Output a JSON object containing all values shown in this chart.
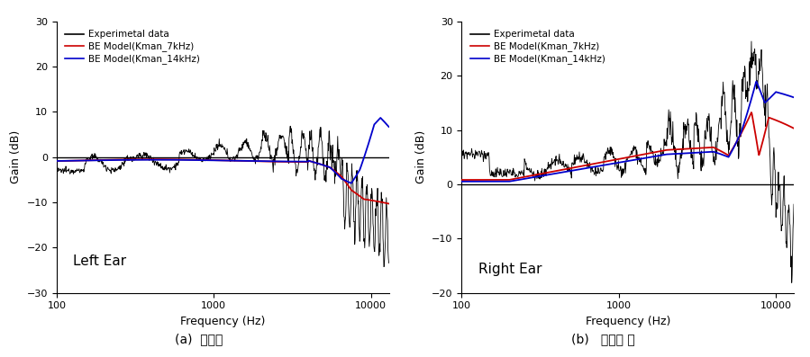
{
  "title_left": "Left Ear",
  "title_right": "Right Ear",
  "xlabel": "Frequency (Hz)",
  "ylabel": "Gain (dB)",
  "legend_labels": [
    "Experimetal data",
    "BE Model(Kman_7kHz)",
    "BE Model(Kman_14kHz)"
  ],
  "legend_colors": [
    "#000000",
    "#cc0000",
    "#0000cc"
  ],
  "xlim": [
    100,
    13000
  ],
  "ylim_left": [
    -30,
    30
  ],
  "ylim_right": [
    -20,
    30
  ],
  "yticks_left": [
    -30,
    -20,
    -10,
    0,
    10,
    20,
    30
  ],
  "yticks_right": [
    -20,
    -10,
    0,
    10,
    20,
    30
  ],
  "caption_left": "(a)  왼쪽귀",
  "caption_right": "(b)   오른쪽 귀",
  "background_color": "#ffffff"
}
